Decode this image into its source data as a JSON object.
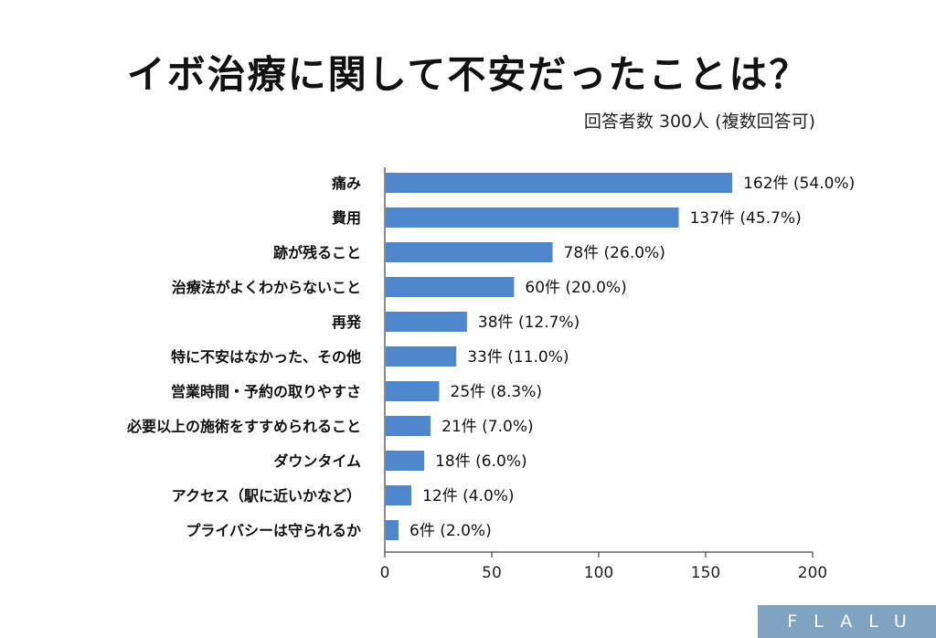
{
  "title": "イボ治療に関して不安だったことは？",
  "subtitle": "回答者数 300人 (複数回答可)",
  "logo": "FLALU",
  "colors": {
    "bar": "#4f87cc",
    "axis": "#444444",
    "logo_bg": "#7fa3c0"
  },
  "chart_data": {
    "type": "bar",
    "orientation": "horizontal",
    "categories": [
      "痛み",
      "費用",
      "跡が残ること",
      "治療法がよくわからないこと",
      "再発",
      "特に不安はなかった、その他",
      "営業時間・予約の取りやすさ",
      "必要以上の施術をすすめられること",
      "ダウンタイム",
      "アクセス（駅に近いかなど）",
      "プライバシーは守られるか"
    ],
    "values": [
      162,
      137,
      78,
      60,
      38,
      33,
      25,
      21,
      18,
      12,
      6
    ],
    "data_labels": [
      "162件 (54.0%)",
      "137件 (45.7%)",
      "78件 (26.0%)",
      "60件 (20.0%)",
      "38件 (12.7%)",
      "33件 (11.0%)",
      "25件 (8.3%)",
      "21件 (7.0%)",
      "18件 (6.0%)",
      "12件 (4.0%)",
      "6件 (2.0%)"
    ],
    "xlim": [
      0,
      200
    ],
    "xticks": [
      "0",
      "50",
      "100",
      "150",
      "200"
    ],
    "xtick_values": [
      0,
      50,
      100,
      150,
      200
    ],
    "grid": false,
    "legend": "none"
  }
}
